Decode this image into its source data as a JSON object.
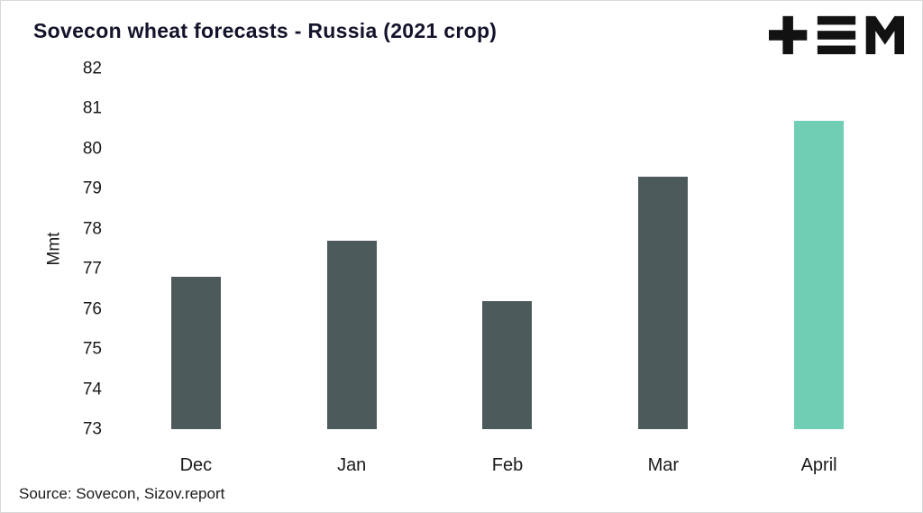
{
  "header": {
    "title": "Sovecon wheat forecasts - Russia (2021 crop)"
  },
  "logo": {
    "name": "tem-logo",
    "color": "#121212"
  },
  "source": {
    "text": "Source: Sovecon, Sizov.report"
  },
  "chart_data": {
    "type": "bar",
    "title": "Sovecon wheat forecasts - Russia (2021 crop)",
    "categories": [
      "Dec",
      "Jan",
      "Feb",
      "Mar",
      "April"
    ],
    "values": [
      76.8,
      77.7,
      76.2,
      79.3,
      80.7
    ],
    "xlabel": "",
    "ylabel": "Mmt",
    "ylim": [
      73,
      82
    ],
    "yticks": [
      73,
      74,
      75,
      76,
      77,
      78,
      79,
      80,
      81,
      82
    ],
    "bar_color": "#4d5a5b",
    "highlight_index": 4,
    "highlight_color": "#6fceb3",
    "grid": false,
    "legend": false
  }
}
